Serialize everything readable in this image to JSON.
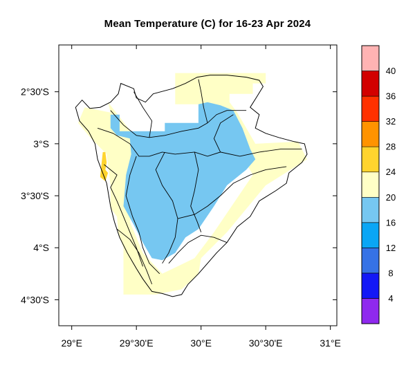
{
  "title": "Mean Temperature (C) for 16-23 Apr 2024",
  "map": {
    "lon_range": [
      28.9,
      31.05
    ],
    "lat_range": [
      -4.75,
      -2.05
    ],
    "x_ticks": [
      {
        "value": 29.0,
        "label": "29°E"
      },
      {
        "value": 29.5,
        "label": "29°30'E"
      },
      {
        "value": 30.0,
        "label": "30°E"
      },
      {
        "value": 30.5,
        "label": "30°30'E"
      },
      {
        "value": 31.0,
        "label": "31°E"
      }
    ],
    "y_ticks": [
      {
        "value": -2.5,
        "label": "2°30'S"
      },
      {
        "value": -3.0,
        "label": "3°S"
      },
      {
        "value": -3.5,
        "label": "3°30'S"
      },
      {
        "value": -4.0,
        "label": "4°S"
      },
      {
        "value": -4.5,
        "label": "4°30'S"
      }
    ],
    "regions": [
      {
        "name": "20-24",
        "color": "#ffffc6",
        "ring": [
          [
            29.8,
            -2.32
          ],
          [
            30.5,
            -2.32
          ],
          [
            30.5,
            -2.42
          ],
          [
            30.4,
            -2.42
          ],
          [
            30.4,
            -2.52
          ],
          [
            30.22,
            -2.52
          ],
          [
            30.22,
            -2.6
          ],
          [
            30.28,
            -2.7
          ],
          [
            30.35,
            -2.85
          ],
          [
            30.42,
            -3.0
          ],
          [
            30.75,
            -2.98
          ],
          [
            30.82,
            -3.15
          ],
          [
            30.5,
            -3.4
          ],
          [
            30.4,
            -3.55
          ],
          [
            30.2,
            -3.85
          ],
          [
            30.0,
            -4.1
          ],
          [
            29.98,
            -4.25
          ],
          [
            29.85,
            -4.4
          ],
          [
            29.65,
            -4.45
          ],
          [
            29.4,
            -4.45
          ],
          [
            29.4,
            -4.0
          ],
          [
            29.36,
            -3.85
          ],
          [
            29.35,
            -3.7
          ],
          [
            29.3,
            -3.62
          ],
          [
            29.3,
            -3.4
          ],
          [
            29.27,
            -3.1
          ],
          [
            29.15,
            -2.95
          ],
          [
            29.05,
            -2.8
          ],
          [
            29.1,
            -2.65
          ],
          [
            29.3,
            -2.7
          ],
          [
            29.28,
            -2.6
          ],
          [
            29.5,
            -2.95
          ],
          [
            29.58,
            -3.25
          ],
          [
            29.5,
            -3.5
          ],
          [
            29.45,
            -3.75
          ],
          [
            29.55,
            -4.05
          ],
          [
            29.7,
            -4.25
          ],
          [
            29.95,
            -4.1
          ],
          [
            30.1,
            -3.85
          ],
          [
            30.4,
            -3.3
          ],
          [
            30.2,
            -2.85
          ],
          [
            30.0,
            -2.62
          ],
          [
            29.8,
            -2.62
          ]
        ]
      },
      {
        "name": "16-20",
        "color": "#76c7f1",
        "ring": [
          [
            29.3,
            -2.72
          ],
          [
            29.37,
            -2.72
          ],
          [
            29.37,
            -2.88
          ],
          [
            29.72,
            -2.88
          ],
          [
            29.72,
            -2.8
          ],
          [
            29.98,
            -2.8
          ],
          [
            29.98,
            -2.62
          ],
          [
            30.05,
            -2.6
          ],
          [
            30.15,
            -2.63
          ],
          [
            30.25,
            -2.68
          ],
          [
            30.32,
            -2.85
          ],
          [
            30.35,
            -2.95
          ],
          [
            30.38,
            -3.05
          ],
          [
            30.42,
            -3.15
          ],
          [
            30.35,
            -3.25
          ],
          [
            30.2,
            -3.4
          ],
          [
            30.1,
            -3.6
          ],
          [
            29.98,
            -3.82
          ],
          [
            29.88,
            -3.9
          ],
          [
            29.8,
            -4.05
          ],
          [
            29.7,
            -4.12
          ],
          [
            29.62,
            -4.1
          ],
          [
            29.55,
            -3.95
          ],
          [
            29.48,
            -3.78
          ],
          [
            29.4,
            -3.6
          ],
          [
            29.42,
            -3.3
          ],
          [
            29.46,
            -3.1
          ],
          [
            29.45,
            -2.95
          ],
          [
            29.35,
            -2.92
          ],
          [
            29.3,
            -2.85
          ]
        ]
      },
      {
        "name": "24-28",
        "color": "#ffd42e",
        "ring": [
          [
            29.24,
            -3.08
          ],
          [
            29.26,
            -3.08
          ],
          [
            29.27,
            -3.18
          ],
          [
            29.26,
            -3.25
          ],
          [
            29.28,
            -3.28
          ],
          [
            29.26,
            -3.36
          ],
          [
            29.22,
            -3.32
          ],
          [
            29.23,
            -3.2
          ]
        ]
      }
    ],
    "outline": [
      [
        29.38,
        -2.42
      ],
      [
        29.48,
        -2.47
      ],
      [
        29.5,
        -2.56
      ],
      [
        29.57,
        -2.6
      ],
      [
        29.63,
        -2.52
      ],
      [
        29.78,
        -2.47
      ],
      [
        29.88,
        -2.42
      ],
      [
        29.97,
        -2.36
      ],
      [
        30.07,
        -2.34
      ],
      [
        30.2,
        -2.34
      ],
      [
        30.35,
        -2.36
      ],
      [
        30.45,
        -2.39
      ],
      [
        30.48,
        -2.45
      ],
      [
        30.43,
        -2.55
      ],
      [
        30.38,
        -2.65
      ],
      [
        30.45,
        -2.72
      ],
      [
        30.42,
        -2.85
      ],
      [
        30.5,
        -2.9
      ],
      [
        30.6,
        -2.94
      ],
      [
        30.72,
        -2.98
      ],
      [
        30.8,
        -3.0
      ],
      [
        30.82,
        -3.1
      ],
      [
        30.78,
        -3.18
      ],
      [
        30.68,
        -3.28
      ],
      [
        30.66,
        -3.38
      ],
      [
        30.58,
        -3.45
      ],
      [
        30.45,
        -3.55
      ],
      [
        30.38,
        -3.7
      ],
      [
        30.28,
        -3.8
      ],
      [
        30.2,
        -3.95
      ],
      [
        30.12,
        -4.05
      ],
      [
        30.05,
        -4.15
      ],
      [
        29.98,
        -4.25
      ],
      [
        29.9,
        -4.35
      ],
      [
        29.85,
        -4.45
      ],
      [
        29.78,
        -4.47
      ],
      [
        29.7,
        -4.44
      ],
      [
        29.62,
        -4.42
      ],
      [
        29.55,
        -4.3
      ],
      [
        29.5,
        -4.2
      ],
      [
        29.43,
        -4.05
      ],
      [
        29.37,
        -3.9
      ],
      [
        29.33,
        -3.75
      ],
      [
        29.3,
        -3.6
      ],
      [
        29.27,
        -3.38
      ],
      [
        29.23,
        -3.25
      ],
      [
        29.2,
        -3.15
      ],
      [
        29.18,
        -3.0
      ],
      [
        29.13,
        -2.88
      ],
      [
        29.06,
        -2.78
      ],
      [
        29.03,
        -2.65
      ],
      [
        29.08,
        -2.58
      ],
      [
        29.14,
        -2.66
      ],
      [
        29.22,
        -2.65
      ],
      [
        29.3,
        -2.6
      ],
      [
        29.36,
        -2.52
      ]
    ],
    "internal_lines": [
      [
        [
          29.3,
          -2.68
        ],
        [
          29.4,
          -2.82
        ],
        [
          29.5,
          -2.92
        ],
        [
          29.6,
          -2.94
        ],
        [
          29.72,
          -2.92
        ],
        [
          29.85,
          -2.88
        ],
        [
          29.98,
          -2.85
        ],
        [
          30.05,
          -2.8
        ],
        [
          30.12,
          -2.72
        ],
        [
          30.2,
          -2.68
        ],
        [
          30.35,
          -2.68
        ]
      ],
      [
        [
          29.2,
          -2.85
        ],
        [
          29.32,
          -2.9
        ],
        [
          29.45,
          -3.0
        ],
        [
          29.52,
          -3.12
        ],
        [
          29.6,
          -3.12
        ],
        [
          29.7,
          -3.08
        ],
        [
          29.8,
          -3.1
        ],
        [
          29.95,
          -3.08
        ],
        [
          30.05,
          -3.12
        ],
        [
          30.15,
          -3.08
        ],
        [
          30.3,
          -3.12
        ],
        [
          30.45,
          -3.08
        ],
        [
          30.62,
          -3.05
        ],
        [
          30.78,
          -3.05
        ]
      ],
      [
        [
          29.5,
          -3.12
        ],
        [
          29.45,
          -3.3
        ],
        [
          29.42,
          -3.5
        ],
        [
          29.47,
          -3.7
        ],
        [
          29.52,
          -3.85
        ],
        [
          29.55,
          -4.0
        ],
        [
          29.6,
          -4.15
        ],
        [
          29.68,
          -4.25
        ]
      ],
      [
        [
          29.72,
          -3.08
        ],
        [
          29.65,
          -3.25
        ],
        [
          29.7,
          -3.4
        ],
        [
          29.78,
          -3.55
        ],
        [
          29.82,
          -3.72
        ],
        [
          29.8,
          -3.9
        ],
        [
          29.75,
          -4.05
        ],
        [
          29.7,
          -4.15
        ]
      ],
      [
        [
          29.95,
          -3.08
        ],
        [
          29.98,
          -3.25
        ],
        [
          29.95,
          -3.45
        ],
        [
          29.92,
          -3.6
        ],
        [
          29.97,
          -3.75
        ],
        [
          30.0,
          -3.85
        ]
      ],
      [
        [
          29.82,
          -3.72
        ],
        [
          29.95,
          -3.68
        ],
        [
          30.05,
          -3.6
        ],
        [
          30.15,
          -3.5
        ],
        [
          30.25,
          -3.38
        ],
        [
          30.38,
          -3.3
        ],
        [
          30.5,
          -3.25
        ],
        [
          30.66,
          -3.22
        ]
      ],
      [
        [
          30.05,
          -2.8
        ],
        [
          30.02,
          -2.65
        ],
        [
          30.0,
          -2.5
        ],
        [
          29.98,
          -2.38
        ]
      ],
      [
        [
          30.15,
          -3.08
        ],
        [
          30.1,
          -2.95
        ],
        [
          30.15,
          -2.8
        ],
        [
          30.25,
          -2.72
        ]
      ],
      [
        [
          29.25,
          -3.2
        ],
        [
          29.35,
          -3.3
        ],
        [
          29.3,
          -3.42
        ],
        [
          29.35,
          -3.55
        ],
        [
          29.4,
          -3.7
        ],
        [
          29.45,
          -3.85
        ],
        [
          29.5,
          -4.0
        ],
        [
          29.55,
          -4.18
        ]
      ],
      [
        [
          29.6,
          -2.94
        ],
        [
          29.62,
          -2.78
        ],
        [
          29.55,
          -2.65
        ],
        [
          29.48,
          -2.5
        ]
      ],
      [
        [
          30.2,
          -3.95
        ],
        [
          30.1,
          -3.9
        ],
        [
          30.0,
          -3.88
        ],
        [
          29.9,
          -3.95
        ],
        [
          29.82,
          -4.05
        ],
        [
          29.75,
          -4.15
        ]
      ],
      [
        [
          29.35,
          -3.82
        ],
        [
          29.45,
          -3.92
        ],
        [
          29.52,
          -4.05
        ],
        [
          29.58,
          -4.22
        ],
        [
          29.62,
          -4.35
        ]
      ]
    ],
    "colors": {
      "frame": "#000000",
      "outline": "#000000"
    }
  },
  "colorbar": {
    "colors": [
      "#8f29ee",
      "#1318f6",
      "#3672e6",
      "#0aa6f5",
      "#76c7f1",
      "#ffffc6",
      "#ffd42e",
      "#ff9300",
      "#ff3100",
      "#d20000",
      "#ffb3b3"
    ],
    "labels": [
      "4",
      "8",
      "12",
      "16",
      "20",
      "24",
      "28",
      "32",
      "36",
      "40"
    ]
  }
}
